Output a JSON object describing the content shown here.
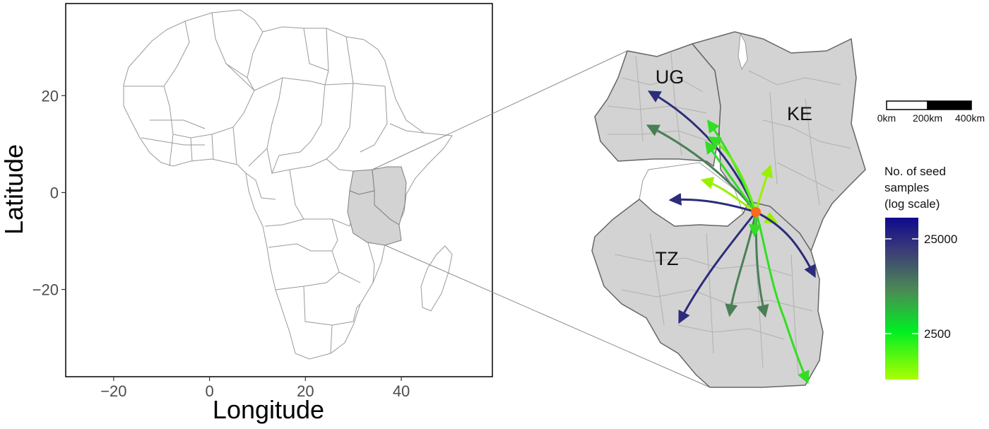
{
  "left_map": {
    "xlabel": "Longitude",
    "ylabel": "Latitude",
    "x_ticks": [
      {
        "value": -20,
        "label": "−20"
      },
      {
        "value": 0,
        "label": "0"
      },
      {
        "value": 20,
        "label": "20"
      },
      {
        "value": 40,
        "label": "40"
      }
    ],
    "y_ticks": [
      {
        "value": 20,
        "label": "20"
      },
      {
        "value": 0,
        "label": "0"
      },
      {
        "value": -20,
        "label": "−20"
      }
    ],
    "xlim": [
      -30,
      59
    ],
    "ylim": [
      -38,
      39
    ],
    "highlighted_region": "East Africa (Uganda, Kenya, Tanzania)",
    "highlight_color": "#d3d3d3"
  },
  "right_map": {
    "countries": [
      {
        "code": "UG",
        "label": "UG"
      },
      {
        "code": "KE",
        "label": "KE"
      },
      {
        "code": "TZ",
        "label": "TZ"
      }
    ],
    "origin_color": "#ff6a1a",
    "flows": [
      {
        "id": "f1",
        "samples": 25000
      },
      {
        "id": "f2",
        "samples": 8000
      },
      {
        "id": "f3",
        "samples": 2500
      },
      {
        "id": "f4",
        "samples": 1800
      },
      {
        "id": "f5",
        "samples": 2100
      },
      {
        "id": "f6",
        "samples": 1500
      },
      {
        "id": "f7",
        "samples": 25000
      },
      {
        "id": "f8",
        "samples": 1200
      },
      {
        "id": "f9",
        "samples": 3000
      },
      {
        "id": "f10",
        "samples": 20000
      },
      {
        "id": "f11",
        "samples": 30000
      },
      {
        "id": "f12",
        "samples": 7000
      },
      {
        "id": "f13",
        "samples": 6000
      },
      {
        "id": "f14",
        "samples": 3000
      }
    ]
  },
  "scale_bar": {
    "labels": [
      "0km",
      "200km",
      "400km"
    ]
  },
  "legend": {
    "title_lines": [
      "No. of seed",
      "samples",
      "(log scale)"
    ],
    "breaks": [
      {
        "value": 25000,
        "label": "25000"
      },
      {
        "value": 2500,
        "label": "2500"
      }
    ],
    "gradient_colors": [
      "#aaff00",
      "#00ee22",
      "#4c8a55",
      "#3b3b78",
      "#0e0b8c"
    ]
  }
}
